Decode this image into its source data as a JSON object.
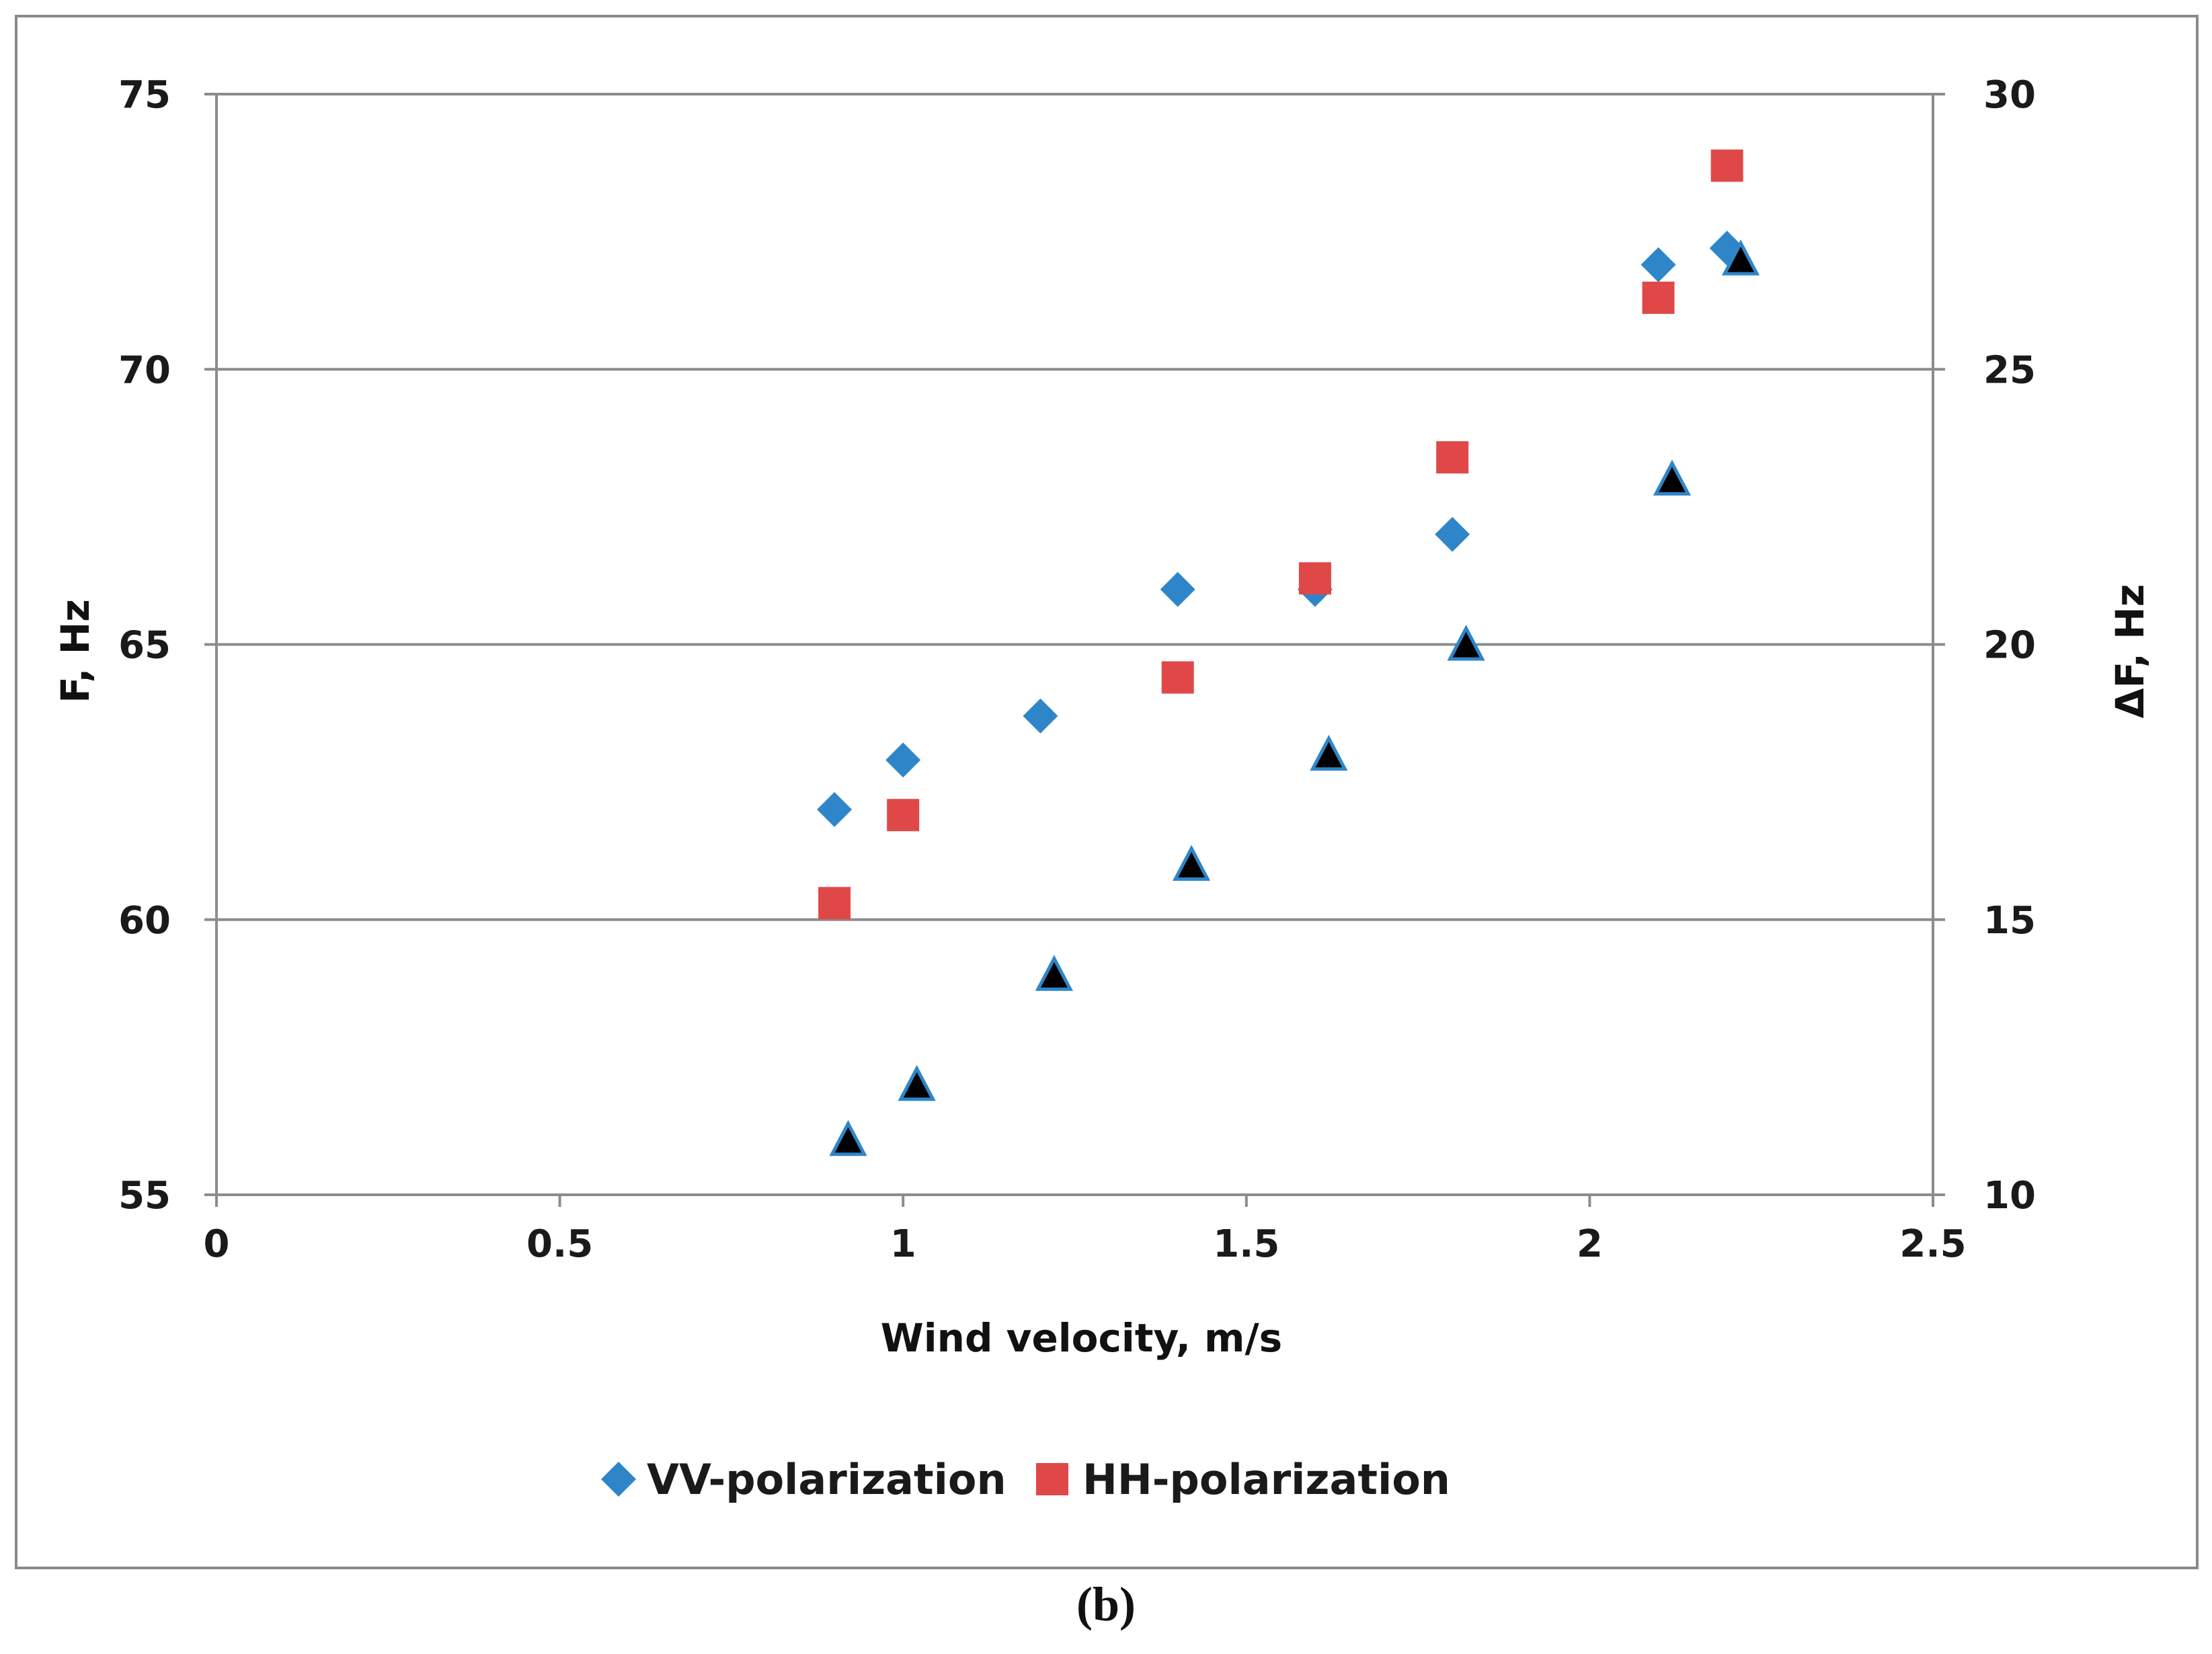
{
  "caption": "(b)",
  "chart_data": {
    "type": "scatter",
    "xlabel": "Wind velocity, m/s",
    "ylabel_left": "F, Hz",
    "ylabel_right": "ΔF, Hz",
    "xlim": [
      0,
      2.5
    ],
    "ylim_left": [
      55,
      75
    ],
    "ylim_right": [
      10,
      30
    ],
    "x_ticks": [
      "0",
      "0.5",
      "1",
      "1.5",
      "2",
      "2.5"
    ],
    "y_ticks_left": [
      "55",
      "60",
      "65",
      "70",
      "75"
    ],
    "y_ticks_right": [
      "10",
      "15",
      "20",
      "25",
      "30"
    ],
    "grid": "horizontal",
    "legend_position": "bottom",
    "series": [
      {
        "name": "VV-polarization",
        "marker": "diamond",
        "axis": "left",
        "color": "#2e86c9",
        "in_legend": true,
        "x": [
          0.9,
          1.0,
          1.2,
          1.4,
          1.6,
          1.8,
          2.1,
          2.2
        ],
        "y": [
          62.0,
          62.9,
          63.7,
          66.0,
          66.0,
          67.0,
          71.9,
          72.2
        ]
      },
      {
        "name": "HH-polarization",
        "marker": "square",
        "axis": "left",
        "color": "#e04848",
        "in_legend": true,
        "x": [
          0.9,
          1.0,
          1.4,
          1.6,
          1.8,
          2.1,
          2.2
        ],
        "y": [
          60.3,
          61.9,
          64.4,
          66.2,
          68.4,
          71.3,
          73.7
        ]
      },
      {
        "name": "ΔF",
        "marker": "triangle",
        "axis": "right",
        "color": "#000000",
        "outline": "#2e86c9",
        "in_legend": false,
        "x": [
          0.92,
          1.02,
          1.22,
          1.42,
          1.62,
          1.82,
          2.12,
          2.22
        ],
        "y": [
          11.0,
          12.0,
          14.0,
          16.0,
          18.0,
          20.0,
          23.0,
          27.0
        ]
      }
    ]
  }
}
